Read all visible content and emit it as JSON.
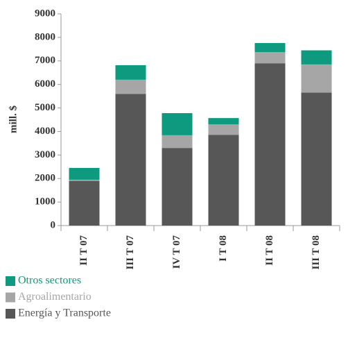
{
  "chart_data": {
    "type": "stacked_bar",
    "y_label": "mill. $",
    "categories": [
      "II T 07",
      "III T 07",
      "IV T 07",
      "I T 08",
      "II T 08",
      "III T 08"
    ],
    "series": [
      {
        "name": "Energía y Transporte",
        "color": "#575757",
        "values": [
          1900,
          5600,
          3300,
          3860,
          6900,
          5650
        ]
      },
      {
        "name": "Agroalimentario",
        "color": "#a6a6a6",
        "values": [
          50,
          600,
          540,
          440,
          470,
          1200
        ]
      },
      {
        "name": "Otros sectores",
        "color": "#0e9a7e",
        "values": [
          500,
          620,
          940,
          270,
          390,
          600
        ]
      }
    ],
    "ylim": [
      0,
      9000
    ],
    "yticks": [
      0,
      1000,
      2000,
      3000,
      4000,
      5000,
      6000,
      7000,
      8000,
      9000
    ]
  }
}
